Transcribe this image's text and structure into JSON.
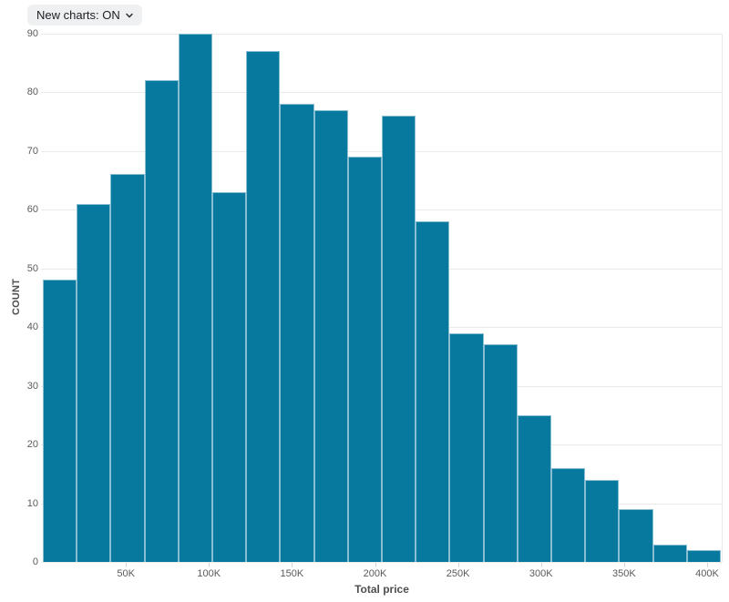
{
  "controls": {
    "new_charts_label": "New charts: ON"
  },
  "chart_data": {
    "type": "bar",
    "subtype": "histogram",
    "title": "",
    "xlabel": "Total price",
    "ylabel": "COUNT",
    "bin_width": 20000,
    "bin_starts": [
      0,
      20000,
      40000,
      60000,
      80000,
      100000,
      120000,
      140000,
      160000,
      180000,
      200000,
      220000,
      240000,
      260000,
      280000,
      300000,
      320000,
      340000,
      360000,
      380000
    ],
    "counts": [
      48,
      61,
      66,
      82,
      90,
      63,
      87,
      78,
      77,
      69,
      76,
      58,
      39,
      37,
      25,
      16,
      14,
      9,
      3,
      2
    ],
    "y_ticks": [
      0,
      10,
      20,
      30,
      40,
      50,
      60,
      70,
      80,
      90
    ],
    "x_ticks": [
      {
        "value": 50000,
        "label": "50K"
      },
      {
        "value": 100000,
        "label": "100K"
      },
      {
        "value": 150000,
        "label": "150K"
      },
      {
        "value": 200000,
        "label": "200K"
      },
      {
        "value": 250000,
        "label": "250K"
      },
      {
        "value": 300000,
        "label": "300K"
      },
      {
        "value": 350000,
        "label": "350K"
      },
      {
        "value": 400000,
        "label": "400K"
      }
    ],
    "ylim": [
      0,
      90
    ],
    "xlim": [
      0,
      408000
    ],
    "grid": "horizontal",
    "legend": "none",
    "colors": {
      "bar_fill": "#07799f",
      "bar_border": "#89bdd2",
      "gridline": "#eaeaea",
      "tick_text": "#5b5b5b",
      "axis_title_text": "#4c4e50",
      "dropdown_bg": "#eef0f1",
      "dropdown_text": "#1b1f24",
      "background": "#ffffff"
    }
  }
}
